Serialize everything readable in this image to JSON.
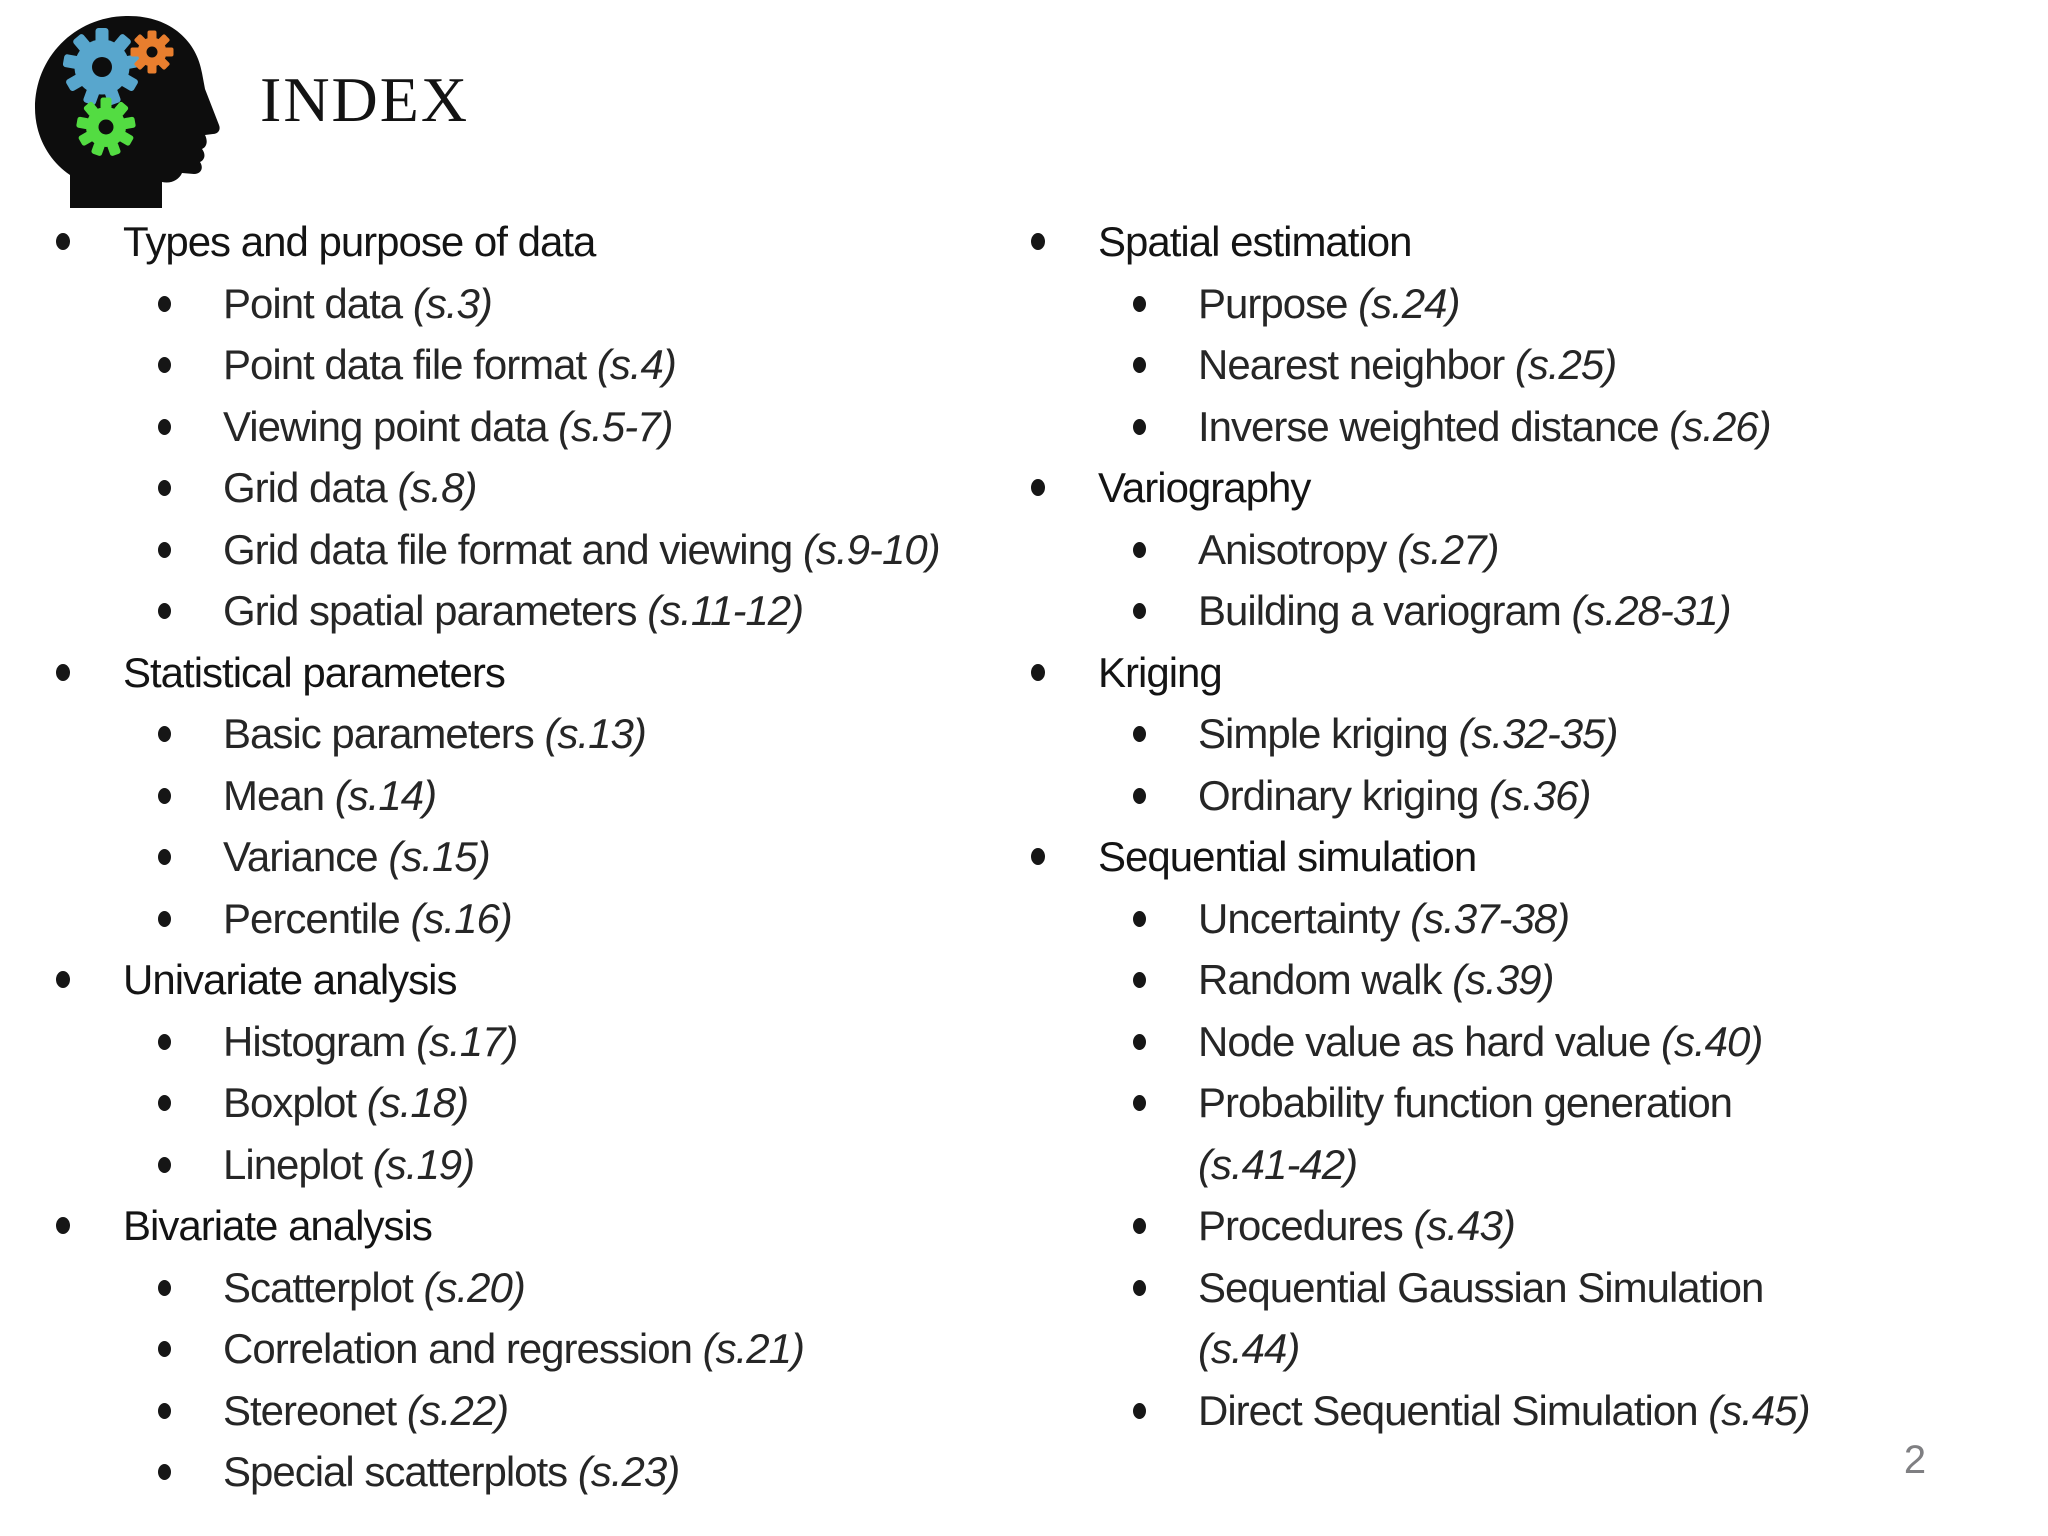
{
  "slide": {
    "title": "INDEX",
    "page_number": "2",
    "text_color": "#1c1c1c",
    "page_number_color": "#7f7f82",
    "logo": {
      "name": "brain-gears-logo",
      "head_color": "#0d0d0d",
      "gear_blue": "#58A6CD",
      "gear_orange": "#E87E2E",
      "gear_green": "#53DC42"
    }
  },
  "toc": {
    "columns": [
      {
        "side": "left",
        "items": [
          {
            "level": 1,
            "text": "Types and purpose of data",
            "ref": null,
            "wrap": false
          },
          {
            "level": 2,
            "text": "Point data",
            "ref": "(s.3)",
            "wrap": false
          },
          {
            "level": 2,
            "text": "Point data file format",
            "ref": "(s.4)",
            "wrap": false
          },
          {
            "level": 2,
            "text": "Viewing point data",
            "ref": "(s.5-7)",
            "wrap": false
          },
          {
            "level": 2,
            "text": "Grid data",
            "ref": "(s.8)",
            "wrap": false
          },
          {
            "level": 2,
            "text": "Grid data file format and viewing",
            "ref": "(s.9-10)",
            "wrap": false
          },
          {
            "level": 2,
            "text": "Grid spatial parameters",
            "ref": "(s.11-12)",
            "wrap": false
          },
          {
            "level": 1,
            "text": "Statistical parameters",
            "ref": null,
            "wrap": false
          },
          {
            "level": 2,
            "text": "Basic parameters",
            "ref": "(s.13)",
            "wrap": false
          },
          {
            "level": 2,
            "text": "Mean",
            "ref": "(s.14)",
            "wrap": false
          },
          {
            "level": 2,
            "text": "Variance",
            "ref": "(s.15)",
            "wrap": false
          },
          {
            "level": 2,
            "text": "Percentile",
            "ref": "(s.16)",
            "wrap": false
          },
          {
            "level": 1,
            "text": "Univariate analysis",
            "ref": null,
            "wrap": false
          },
          {
            "level": 2,
            "text": "Histogram",
            "ref": "(s.17)",
            "wrap": false
          },
          {
            "level": 2,
            "text": "Boxplot",
            "ref": "(s.18)",
            "wrap": false
          },
          {
            "level": 2,
            "text": "Lineplot",
            "ref": "(s.19)",
            "wrap": false
          },
          {
            "level": 1,
            "text": "Bivariate analysis",
            "ref": null,
            "wrap": false
          },
          {
            "level": 2,
            "text": "Scatterplot",
            "ref": "(s.20)",
            "wrap": false
          },
          {
            "level": 2,
            "text": "Correlation and regression",
            "ref": "(s.21)",
            "wrap": false
          },
          {
            "level": 2,
            "text": "Stereonet",
            "ref": "(s.22)",
            "wrap": false
          },
          {
            "level": 2,
            "text": "Special scatterplots",
            "ref": "(s.23)",
            "wrap": false
          }
        ]
      },
      {
        "side": "right",
        "items": [
          {
            "level": 1,
            "text": "Spatial estimation",
            "ref": null,
            "wrap": false
          },
          {
            "level": 2,
            "text": "Purpose",
            "ref": "(s.24)",
            "wrap": false
          },
          {
            "level": 2,
            "text": "Nearest neighbor",
            "ref": "(s.25)",
            "wrap": false
          },
          {
            "level": 2,
            "text": "Inverse weighted distance",
            "ref": "(s.26)",
            "wrap": false
          },
          {
            "level": 1,
            "text": "Variography",
            "ref": null,
            "wrap": false
          },
          {
            "level": 2,
            "text": "Anisotropy",
            "ref": "(s.27)",
            "wrap": false
          },
          {
            "level": 2,
            "text": "Building a variogram",
            "ref": "(s.28-31)",
            "wrap": false
          },
          {
            "level": 1,
            "text": "Kriging",
            "ref": null,
            "wrap": false
          },
          {
            "level": 2,
            "text": "Simple kriging",
            "ref": "(s.32-35)",
            "wrap": false
          },
          {
            "level": 2,
            "text": "Ordinary kriging",
            "ref": "(s.36)",
            "wrap": false
          },
          {
            "level": 1,
            "text": "Sequential simulation",
            "ref": null,
            "wrap": false
          },
          {
            "level": 2,
            "text": "Uncertainty",
            "ref": "(s.37-38)",
            "wrap": false
          },
          {
            "level": 2,
            "text": "Random walk",
            "ref": "(s.39)",
            "wrap": false
          },
          {
            "level": 2,
            "text": "Node value as hard value",
            "ref": "(s.40)",
            "wrap": false
          },
          {
            "level": 2,
            "text": "Probability function generation",
            "ref": "(s.41-42)",
            "wrap": true
          },
          {
            "level": 2,
            "text": "Procedures",
            "ref": "(s.43)",
            "wrap": false
          },
          {
            "level": 2,
            "text": "Sequential Gaussian Simulation",
            "ref": "(s.44)",
            "wrap": true
          },
          {
            "level": 2,
            "text": "Direct Sequential Simulation",
            "ref": "(s.45)",
            "wrap": false
          }
        ]
      }
    ]
  }
}
